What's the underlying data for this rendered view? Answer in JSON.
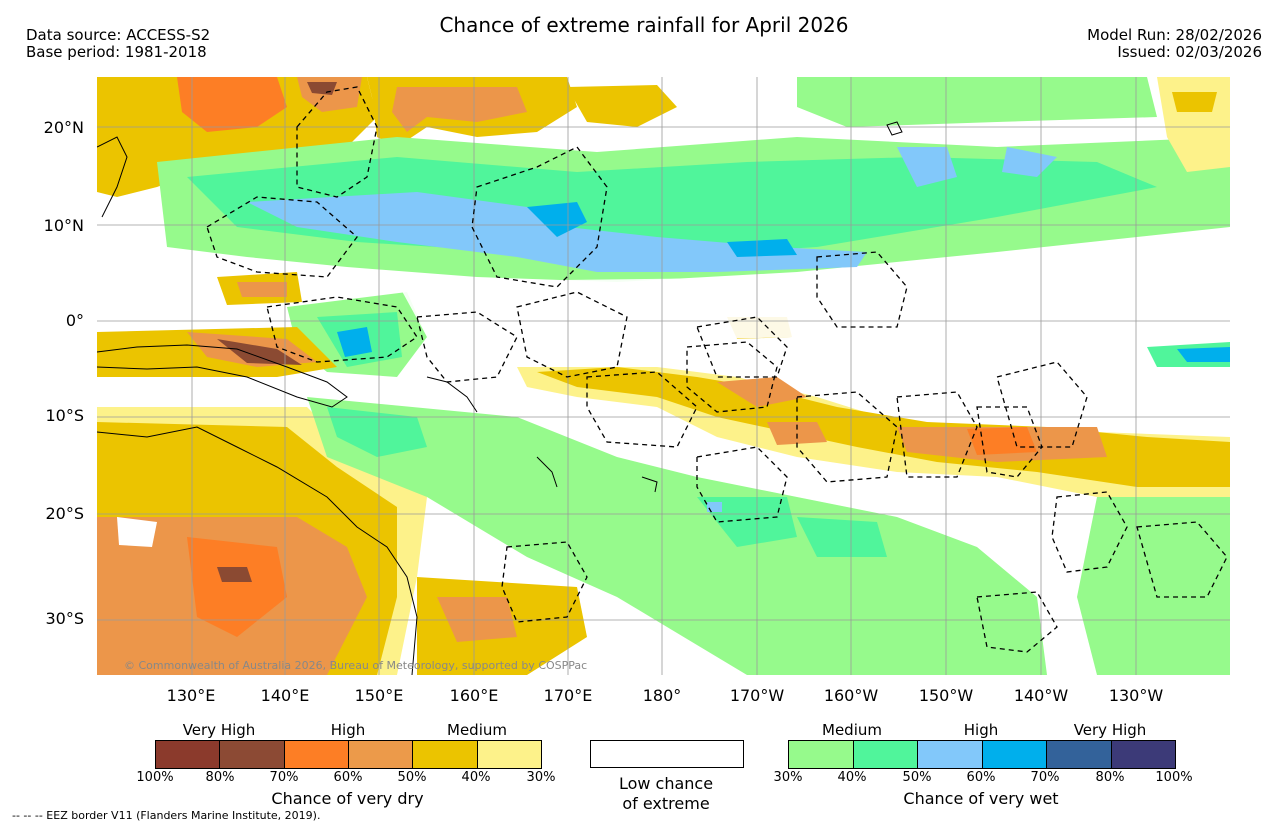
{
  "header": {
    "title": "Chance of extreme rainfall for April 2026",
    "data_source": "Data source: ACCESS-S2",
    "base_period": "Base period: 1981-2018",
    "model_run": "Model Run: 28/02/2026",
    "issued": "Issued: 02/03/2026"
  },
  "map": {
    "lat_labels": [
      "20°N",
      "10°N",
      "0°",
      "10°S",
      "20°S",
      "30°S"
    ],
    "lon_labels": [
      "130°E",
      "140°E",
      "150°E",
      "160°E",
      "170°E",
      "180°",
      "170°W",
      "160°W",
      "150°W",
      "140°W",
      "130°W"
    ],
    "copyright": "© Commonwealth of Australia 2026, Bureau of Meteorology, supported by COSPPac",
    "colors": {
      "dry_30": "#fdf28a",
      "dry_40": "#ebc400",
      "dry_60": "#ec964a",
      "dry_70": "#fd7e25",
      "dry_80": "#8b4a32",
      "dry_100": "#823c2f",
      "wet_30": "#96fa8c",
      "wet_40": "#50f59b",
      "wet_50": "#82c8fa",
      "wet_60": "#00afec",
      "wet_70": "#33629a",
      "wet_80": "#3c3a78"
    }
  },
  "legend": {
    "dry": {
      "categories": [
        "Very High",
        "High",
        "Medium"
      ],
      "ticks": [
        "100%",
        "80%",
        "70%",
        "60%",
        "50%",
        "40%",
        "30%"
      ],
      "colors": [
        "#8b3a2c",
        "#8c4a34",
        "#fd7e25",
        "#ec9a4a",
        "#ebc400",
        "#fdf28a"
      ],
      "title": "Chance of very dry"
    },
    "low": {
      "line1": "Low chance",
      "line2": "of extreme"
    },
    "wet": {
      "categories": [
        "Medium",
        "High",
        "Very High"
      ],
      "ticks": [
        "30%",
        "40%",
        "50%",
        "60%",
        "70%",
        "80%",
        "100%"
      ],
      "colors": [
        "#96fa8c",
        "#50f59b",
        "#82c8fa",
        "#00afec",
        "#33629a",
        "#3c3a78"
      ],
      "title": "Chance of very wet"
    }
  },
  "footer": {
    "eez_note": "--  --  -- EEZ border V11 (Flanders Marine Institute, 2019)."
  }
}
